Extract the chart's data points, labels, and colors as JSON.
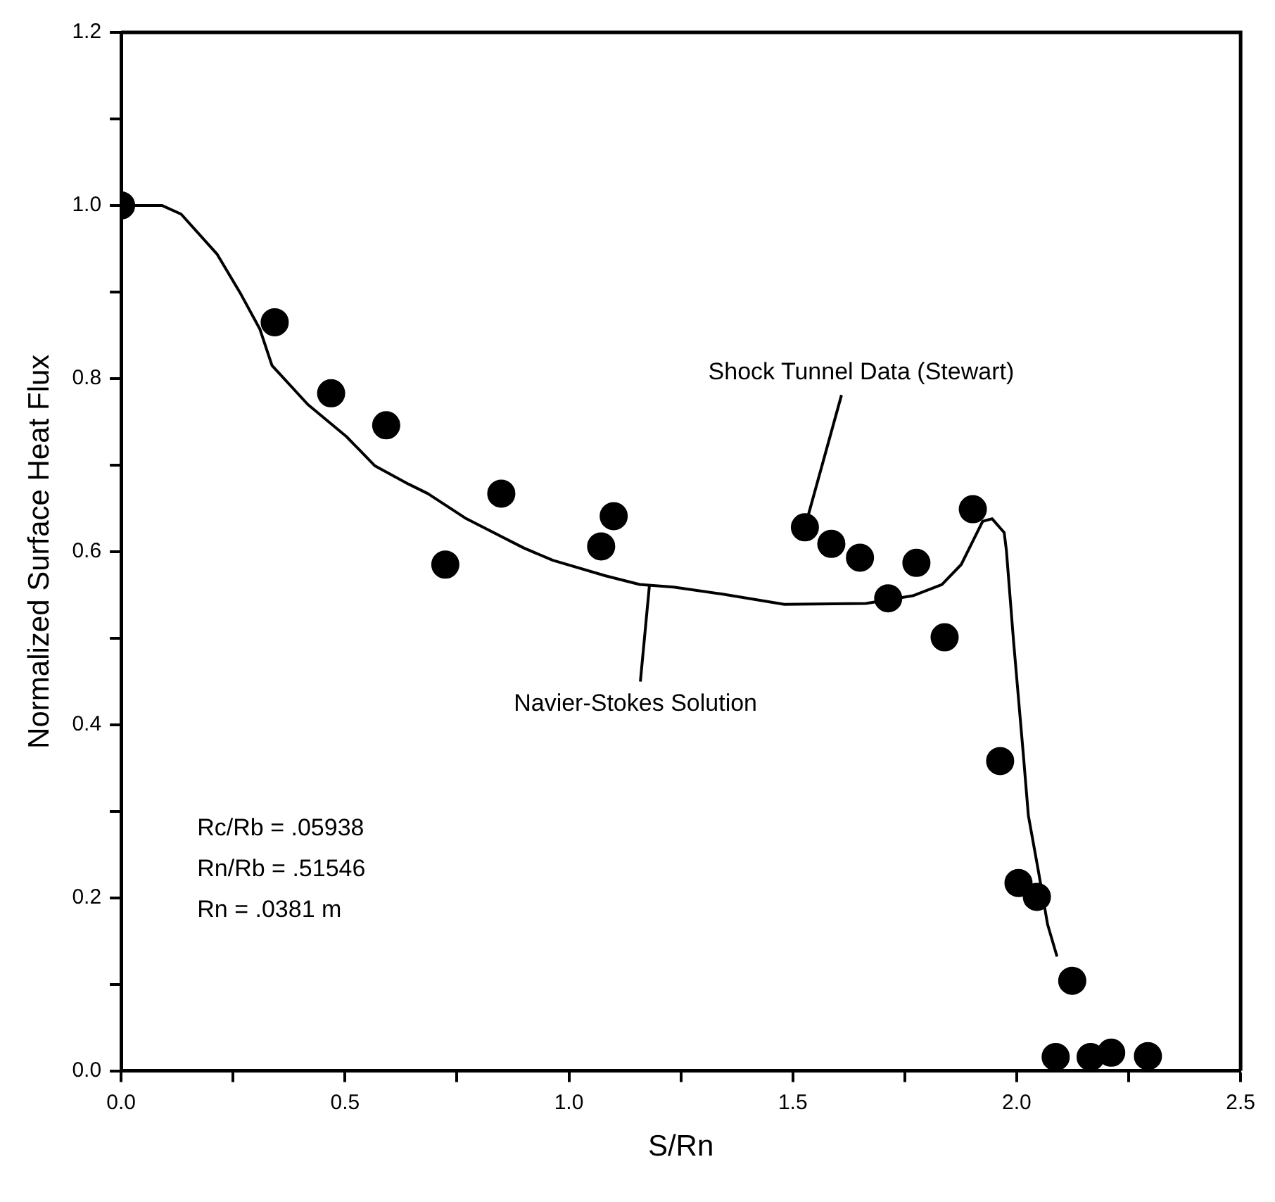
{
  "chart_data": {
    "type": "scatter",
    "xlabel": "S/Rn",
    "ylabel": "Normalized Surface Heat Flux",
    "xlim": [
      0,
      2.5
    ],
    "ylim": [
      0,
      1.2
    ],
    "xticks": [
      {
        "value": 0,
        "label": "0.0"
      },
      {
        "value": 0.25,
        "label": null
      },
      {
        "value": 0.5,
        "label": "0.5"
      },
      {
        "value": 0.75,
        "label": null
      },
      {
        "value": 1,
        "label": "1.0"
      },
      {
        "value": 1.25,
        "label": null
      },
      {
        "value": 1.5,
        "label": "1.5"
      },
      {
        "value": 1.75,
        "label": null
      },
      {
        "value": 2,
        "label": "2.0"
      },
      {
        "value": 2.25,
        "label": null
      },
      {
        "value": 2.5,
        "label": "2.5"
      }
    ],
    "yticks": [
      {
        "value": 0,
        "label": "0.0"
      },
      {
        "value": 0.1,
        "label": null
      },
      {
        "value": 0.2,
        "label": "0.2"
      },
      {
        "value": 0.3,
        "label": null
      },
      {
        "value": 0.4,
        "label": "0.4"
      },
      {
        "value": 0.5,
        "label": null
      },
      {
        "value": 0.6,
        "label": "0.6"
      },
      {
        "value": 0.7,
        "label": null
      },
      {
        "value": 0.8,
        "label": "0.8"
      },
      {
        "value": 0.9,
        "label": null
      },
      {
        "value": 1,
        "label": "1.0"
      },
      {
        "value": 1.1,
        "label": null
      },
      {
        "value": 1.2,
        "label": "1.2"
      }
    ],
    "grid": false,
    "legend": false,
    "series": [
      {
        "type": "line",
        "color": "#000000",
        "marker": "none",
        "line_style": "solid",
        "x": [
          0,
          0.091,
          0.134,
          0.214,
          0.268,
          0.31,
          0.337,
          0.417,
          0.503,
          0.567,
          0.642,
          0.685,
          0.771,
          0.9,
          0.964,
          1.082,
          1.158,
          1.234,
          1.341,
          1.481,
          1.663,
          1.768,
          1.833,
          1.876,
          1.924,
          1.945,
          1.972,
          1.977,
          1.993,
          2.015,
          2.026,
          2.048,
          2.069,
          2.09
        ],
        "values": [
          1.0,
          1.0,
          0.99,
          0.944,
          0.897,
          0.857,
          0.815,
          0.77,
          0.733,
          0.699,
          0.678,
          0.667,
          0.638,
          0.604,
          0.59,
          0.572,
          0.562,
          0.559,
          0.551,
          0.539,
          0.54,
          0.549,
          0.562,
          0.585,
          0.635,
          0.638,
          0.622,
          0.601,
          0.496,
          0.364,
          0.295,
          0.232,
          0.169,
          0.132
        ]
      },
      {
        "type": "scatter",
        "color": "#000000",
        "marker": "circle",
        "x": [
          0,
          0.343,
          0.469,
          0.592,
          0.724,
          0.849,
          1.072,
          1.1,
          1.527,
          1.586,
          1.65,
          1.776,
          1.902,
          1.713,
          1.839,
          1.963,
          2.004,
          2.045,
          2.124,
          2.087,
          2.165,
          2.211,
          2.293
        ],
        "values": [
          1.0,
          0.865,
          0.783,
          0.746,
          0.585,
          0.667,
          0.606,
          0.641,
          0.628,
          0.609,
          0.593,
          0.587,
          0.649,
          0.546,
          0.501,
          0.358,
          0.217,
          0.201,
          0.104,
          0.016,
          0.016,
          0.021,
          0.017
        ]
      }
    ],
    "annotations": [
      {
        "text": "Shock Tunnel Data (Stewart)",
        "x": 1.527,
        "y": 0.628
      },
      {
        "text": "Navier-Stokes Solution",
        "x": 1.18,
        "y": 0.562
      },
      "Rc/Rb = .05938",
      "Rn/Rb = .51546",
      "Rn = .0381 m"
    ]
  }
}
